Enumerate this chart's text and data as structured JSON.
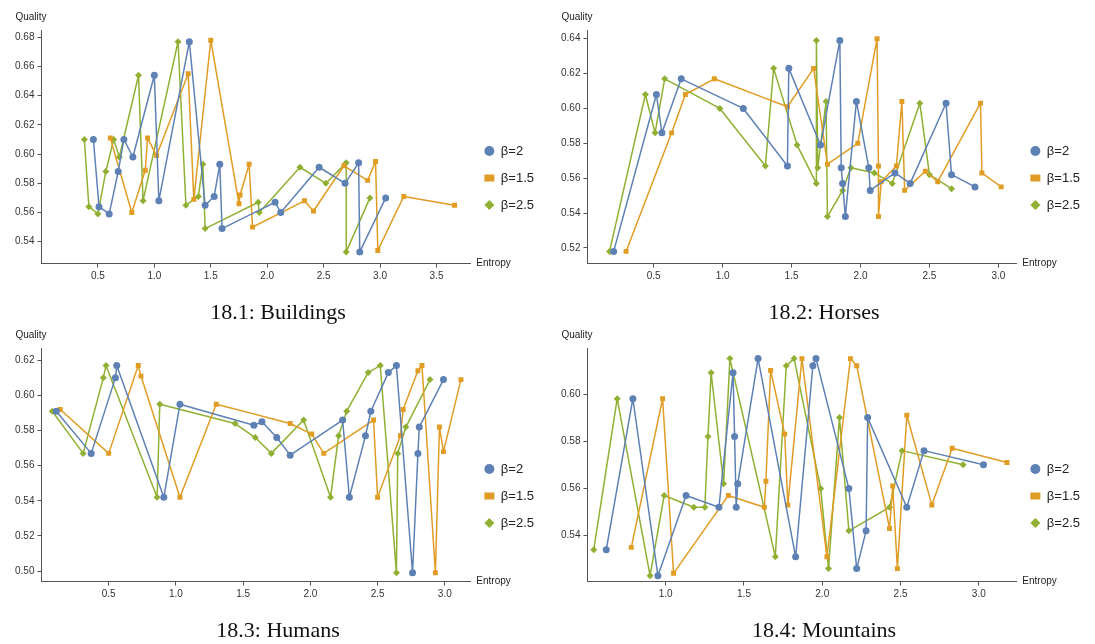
{
  "chart_data": [
    {
      "type": "line",
      "title": "18.1: Buildings",
      "xlabel": "Entropy",
      "ylabel": "Quality",
      "legend": "right",
      "xlim": [
        0,
        3.8
      ],
      "ylim": [
        0.525,
        0.685
      ],
      "xticks": [
        {
          "value": 0.5,
          "label": "0.5"
        },
        {
          "value": 1,
          "label": "1.0"
        },
        {
          "value": 1.5,
          "label": "1.5"
        },
        {
          "value": 2,
          "label": "2.0"
        },
        {
          "value": 2.5,
          "label": "2.5"
        },
        {
          "value": 3,
          "label": "3.0"
        },
        {
          "value": 3.5,
          "label": "3.5"
        }
      ],
      "yticks": [
        {
          "value": 0.54,
          "label": "0.54"
        },
        {
          "value": 0.56,
          "label": "0.56"
        },
        {
          "value": 0.58,
          "label": "0.58"
        },
        {
          "value": 0.6,
          "label": "0.60"
        },
        {
          "value": 0.62,
          "label": "0.62"
        },
        {
          "value": 0.64,
          "label": "0.64"
        },
        {
          "value": 0.66,
          "label": "0.66"
        },
        {
          "value": 0.68,
          "label": "0.68"
        }
      ],
      "series": [
        {
          "name": "β=2",
          "color": "#5e81b5",
          "marker": "circle",
          "x": [
            0.46,
            0.51,
            0.6,
            0.68,
            0.73,
            0.81,
            1.0,
            1.04,
            1.31,
            1.45,
            1.53,
            1.58,
            1.6,
            2.07,
            2.12,
            2.46,
            2.69,
            2.81,
            2.82,
            3.05
          ],
          "values": [
            0.61,
            0.564,
            0.559,
            0.588,
            0.61,
            0.598,
            0.654,
            0.568,
            0.677,
            0.565,
            0.571,
            0.593,
            0.549,
            0.567,
            0.56,
            0.591,
            0.58,
            0.594,
            0.533,
            0.57
          ]
        },
        {
          "name": "β=1.5",
          "color": "#e19c24",
          "marker": "square",
          "x": [
            0.61,
            0.8,
            0.92,
            0.94,
            1.02,
            1.3,
            1.35,
            1.5,
            1.75,
            1.76,
            1.84,
            1.87,
            2.33,
            2.41,
            2.68,
            2.89,
            2.96,
            2.98,
            3.21,
            3.66
          ],
          "values": [
            0.611,
            0.56,
            0.589,
            0.611,
            0.599,
            0.655,
            0.569,
            0.678,
            0.566,
            0.572,
            0.593,
            0.55,
            0.568,
            0.561,
            0.592,
            0.582,
            0.595,
            0.534,
            0.571,
            0.565
          ]
        },
        {
          "name": "β=2.5",
          "color": "#8fb032",
          "marker": "diamond",
          "x": [
            0.38,
            0.42,
            0.5,
            0.57,
            0.64,
            0.69,
            0.86,
            0.9,
            1.21,
            1.28,
            1.39,
            1.43,
            1.45,
            1.92,
            1.93,
            2.29,
            2.52,
            2.7,
            2.7,
            2.91
          ],
          "values": [
            0.61,
            0.564,
            0.559,
            0.588,
            0.61,
            0.598,
            0.654,
            0.568,
            0.677,
            0.565,
            0.571,
            0.593,
            0.549,
            0.567,
            0.56,
            0.591,
            0.58,
            0.594,
            0.533,
            0.57
          ]
        }
      ]
    },
    {
      "type": "line",
      "title": "18.2: Horses",
      "xlabel": "Entropy",
      "ylabel": "Quality",
      "legend": "right",
      "xlim": [
        0.02,
        3.13
      ],
      "ylim": [
        0.511,
        0.645
      ],
      "xticks": [
        {
          "value": 0.5,
          "label": "0.5"
        },
        {
          "value": 1,
          "label": "1.0"
        },
        {
          "value": 1.5,
          "label": "1.5"
        },
        {
          "value": 2,
          "label": "2.0"
        },
        {
          "value": 2.5,
          "label": "2.5"
        },
        {
          "value": 3,
          "label": "3.0"
        }
      ],
      "yticks": [
        {
          "value": 0.52,
          "label": "0.52"
        },
        {
          "value": 0.54,
          "label": "0.54"
        },
        {
          "value": 0.56,
          "label": "0.56"
        },
        {
          "value": 0.58,
          "label": "0.58"
        },
        {
          "value": 0.6,
          "label": "0.60"
        },
        {
          "value": 0.62,
          "label": "0.62"
        },
        {
          "value": 0.64,
          "label": "0.64"
        }
      ],
      "series": [
        {
          "name": "β=2",
          "color": "#5e81b5",
          "marker": "circle",
          "x": [
            0.21,
            0.52,
            0.56,
            0.7,
            1.15,
            1.47,
            1.48,
            1.71,
            1.85,
            1.86,
            1.87,
            1.89,
            1.97,
            2.06,
            2.07,
            2.25,
            2.36,
            2.62,
            2.66,
            2.83
          ],
          "values": [
            0.518,
            0.608,
            0.586,
            0.617,
            0.6,
            0.567,
            0.623,
            0.579,
            0.639,
            0.566,
            0.557,
            0.538,
            0.604,
            0.566,
            0.553,
            0.563,
            0.557,
            0.603,
            0.562,
            0.555
          ]
        },
        {
          "name": "β=1.5",
          "color": "#e19c24",
          "marker": "square",
          "x": [
            0.3,
            0.63,
            0.73,
            0.94,
            1.47,
            1.66,
            1.76,
            1.98,
            2.12,
            2.13,
            2.13,
            2.15,
            2.26,
            2.3,
            2.32,
            2.47,
            2.56,
            2.87,
            2.88,
            3.02
          ],
          "values": [
            0.518,
            0.586,
            0.608,
            0.617,
            0.601,
            0.623,
            0.568,
            0.58,
            0.64,
            0.567,
            0.538,
            0.558,
            0.567,
            0.604,
            0.553,
            0.564,
            0.558,
            0.603,
            0.563,
            0.555
          ]
        },
        {
          "name": "β=2.5",
          "color": "#8fb032",
          "marker": "diamond",
          "x": [
            0.18,
            0.44,
            0.51,
            0.58,
            0.98,
            1.31,
            1.37,
            1.54,
            1.68,
            1.68,
            1.69,
            1.75,
            1.76,
            1.87,
            1.93,
            2.1,
            2.23,
            2.43,
            2.5,
            2.66
          ],
          "values": [
            0.518,
            0.608,
            0.586,
            0.617,
            0.6,
            0.567,
            0.623,
            0.579,
            0.557,
            0.639,
            0.566,
            0.604,
            0.538,
            0.553,
            0.566,
            0.563,
            0.557,
            0.603,
            0.562,
            0.554
          ]
        }
      ]
    },
    {
      "type": "line",
      "title": "18.3: Humans",
      "xlabel": "Entropy",
      "ylabel": "Quality",
      "legend": "right",
      "xlim": [
        0,
        3.19
      ],
      "ylim": [
        0.494,
        0.627
      ],
      "xticks": [
        {
          "value": 0.5,
          "label": "0.5"
        },
        {
          "value": 1,
          "label": "1.0"
        },
        {
          "value": 1.5,
          "label": "1.5"
        },
        {
          "value": 2,
          "label": "2.0"
        },
        {
          "value": 2.5,
          "label": "2.5"
        },
        {
          "value": 3,
          "label": "3.0"
        }
      ],
      "yticks": [
        {
          "value": 0.5,
          "label": "0.50"
        },
        {
          "value": 0.52,
          "label": "0.52"
        },
        {
          "value": 0.54,
          "label": "0.54"
        },
        {
          "value": 0.56,
          "label": "0.56"
        },
        {
          "value": 0.58,
          "label": "0.58"
        },
        {
          "value": 0.6,
          "label": "0.60"
        },
        {
          "value": 0.62,
          "label": "0.62"
        }
      ],
      "series": [
        {
          "name": "β=2",
          "color": "#5e81b5",
          "marker": "circle",
          "x": [
            0.11,
            0.37,
            0.55,
            0.56,
            0.91,
            1.03,
            1.58,
            1.64,
            1.75,
            1.85,
            2.24,
            2.29,
            2.41,
            2.45,
            2.58,
            2.64,
            2.76,
            2.8,
            2.81,
            2.99
          ],
          "values": [
            0.591,
            0.567,
            0.61,
            0.617,
            0.542,
            0.595,
            0.583,
            0.585,
            0.576,
            0.566,
            0.586,
            0.542,
            0.577,
            0.591,
            0.613,
            0.617,
            0.499,
            0.567,
            0.582,
            0.609
          ]
        },
        {
          "name": "β=1.5",
          "color": "#e19c24",
          "marker": "square",
          "x": [
            0.14,
            0.5,
            0.72,
            0.74,
            1.03,
            1.3,
            1.85,
            2.01,
            2.1,
            2.47,
            2.5,
            2.67,
            2.69,
            2.8,
            2.83,
            2.93,
            2.96,
            2.99,
            3.12
          ],
          "values": [
            0.592,
            0.567,
            0.617,
            0.611,
            0.542,
            0.595,
            0.584,
            0.578,
            0.567,
            0.586,
            0.542,
            0.577,
            0.592,
            0.614,
            0.617,
            0.499,
            0.582,
            0.568,
            0.609
          ]
        },
        {
          "name": "β=2.5",
          "color": "#8fb032",
          "marker": "diamond",
          "x": [
            0.08,
            0.31,
            0.46,
            0.48,
            0.86,
            0.88,
            1.44,
            1.59,
            1.71,
            1.95,
            2.15,
            2.21,
            2.27,
            2.43,
            2.52,
            2.64,
            2.65,
            2.71,
            2.89
          ],
          "values": [
            0.591,
            0.567,
            0.61,
            0.617,
            0.542,
            0.595,
            0.584,
            0.576,
            0.567,
            0.586,
            0.542,
            0.577,
            0.591,
            0.613,
            0.617,
            0.499,
            0.567,
            0.582,
            0.609
          ]
        }
      ]
    },
    {
      "type": "line",
      "title": "18.4: Mountains",
      "xlabel": "Entropy",
      "ylabel": "Quality",
      "legend": "right",
      "xlim": [
        0.5,
        3.24
      ],
      "ylim": [
        0.5205,
        0.6195
      ],
      "xticks": [
        {
          "value": 1,
          "label": "1.0"
        },
        {
          "value": 1.5,
          "label": "1.5"
        },
        {
          "value": 2,
          "label": "2.0"
        },
        {
          "value": 2.5,
          "label": "2.5"
        },
        {
          "value": 3,
          "label": "3.0"
        }
      ],
      "yticks": [
        {
          "value": 0.54,
          "label": "0.54"
        },
        {
          "value": 0.56,
          "label": "0.56"
        },
        {
          "value": 0.58,
          "label": "0.58"
        },
        {
          "value": 0.6,
          "label": "0.60"
        }
      ],
      "series": [
        {
          "name": "β=2",
          "color": "#5e81b5",
          "marker": "circle",
          "x": [
            0.62,
            0.79,
            0.95,
            1.13,
            1.34,
            1.43,
            1.44,
            1.45,
            1.46,
            1.59,
            1.83,
            1.94,
            1.96,
            2.17,
            2.22,
            2.28,
            2.29,
            2.54,
            2.65,
            3.03
          ],
          "values": [
            0.534,
            0.598,
            0.523,
            0.557,
            0.552,
            0.609,
            0.582,
            0.552,
            0.562,
            0.615,
            0.531,
            0.612,
            0.615,
            0.56,
            0.526,
            0.542,
            0.59,
            0.552,
            0.576,
            0.57
          ]
        },
        {
          "name": "β=1.5",
          "color": "#e19c24",
          "marker": "square",
          "x": [
            0.78,
            0.98,
            1.05,
            1.4,
            1.63,
            1.64,
            1.67,
            1.76,
            1.78,
            1.87,
            2.03,
            2.18,
            2.22,
            2.43,
            2.45,
            2.48,
            2.54,
            2.7,
            2.83,
            3.18
          ],
          "values": [
            0.535,
            0.598,
            0.524,
            0.557,
            0.552,
            0.563,
            0.61,
            0.583,
            0.553,
            0.615,
            0.531,
            0.615,
            0.612,
            0.543,
            0.561,
            0.526,
            0.591,
            0.553,
            0.577,
            0.571
          ]
        },
        {
          "name": "β=2.5",
          "color": "#8fb032",
          "marker": "diamond",
          "x": [
            0.54,
            0.69,
            0.9,
            0.99,
            1.18,
            1.25,
            1.27,
            1.29,
            1.37,
            1.41,
            1.7,
            1.77,
            1.82,
            1.99,
            2.04,
            2.11,
            2.17,
            2.43,
            2.51,
            2.9
          ],
          "values": [
            0.534,
            0.598,
            0.523,
            0.557,
            0.552,
            0.552,
            0.582,
            0.609,
            0.562,
            0.615,
            0.531,
            0.612,
            0.615,
            0.56,
            0.526,
            0.59,
            0.542,
            0.552,
            0.576,
            0.57
          ]
        }
      ]
    }
  ]
}
